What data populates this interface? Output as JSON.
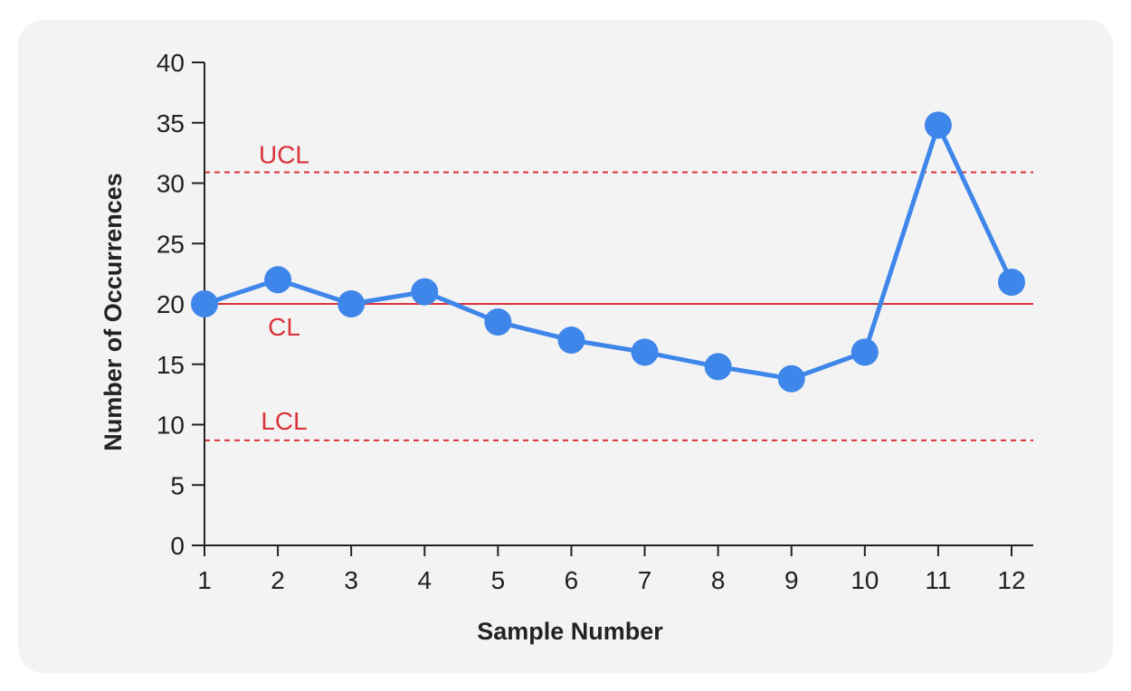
{
  "chart_data": {
    "type": "line",
    "title": "",
    "xlabel": "Sample Number",
    "ylabel": "Number of Occurrences",
    "x": [
      1,
      2,
      3,
      4,
      5,
      6,
      7,
      8,
      9,
      10,
      11,
      12
    ],
    "series": [
      {
        "values": [
          20,
          22,
          20,
          21,
          18.5,
          17,
          16,
          14.8,
          13.8,
          16,
          34.8,
          21.8
        ],
        "color": "#3f86ea"
      }
    ],
    "xticks": [
      "1",
      "2",
      "3",
      "4",
      "5",
      "6",
      "7",
      "8",
      "9",
      "10",
      "11",
      "12"
    ],
    "yticks": [
      "0",
      "5",
      "10",
      "15",
      "20",
      "25",
      "30",
      "35",
      "40"
    ],
    "ylim": [
      0,
      40
    ],
    "xlim": [
      1,
      12
    ],
    "reference_lines": [
      {
        "label": "UCL",
        "value": 30.9,
        "style": "dashed",
        "color": "#d9333a"
      },
      {
        "label": "CL",
        "value": 20,
        "style": "solid",
        "color": "#d9333a"
      },
      {
        "label": "LCL",
        "value": 8.7,
        "style": "dashed",
        "color": "#d9333a"
      }
    ],
    "grid": false,
    "legend": "none"
  }
}
